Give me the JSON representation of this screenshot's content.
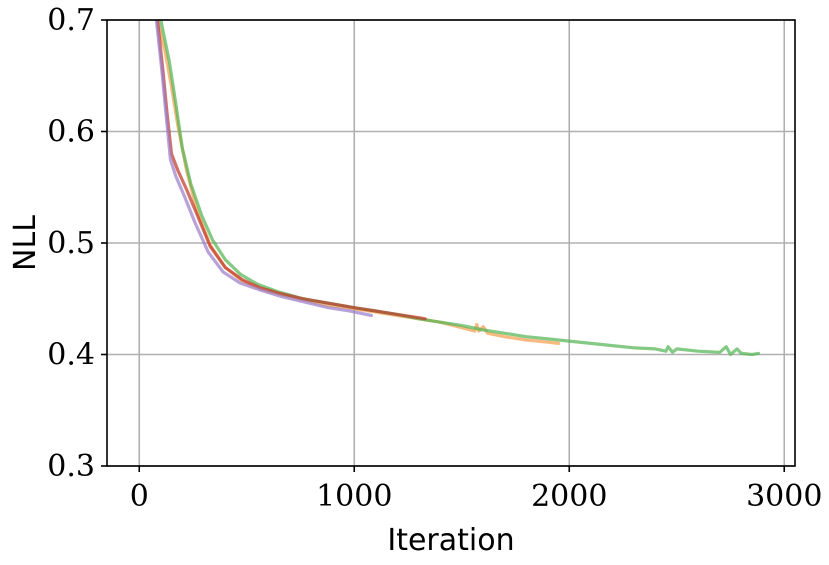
{
  "chart_data": {
    "type": "line",
    "title": "",
    "xlabel": "Iteration",
    "ylabel": "NLL",
    "xlim": [
      -150,
      3050
    ],
    "ylim": [
      0.3,
      0.7
    ],
    "xticks": [
      0,
      1000,
      2000,
      3000
    ],
    "xtick_labels": [
      "0",
      "1000",
      "2000",
      "3000"
    ],
    "yticks": [
      0.3,
      0.4,
      0.5,
      0.6,
      0.7
    ],
    "ytick_labels": [
      "0.3",
      "0.4",
      "0.5",
      "0.6",
      "0.7"
    ],
    "grid": true,
    "series": [
      {
        "color": "#f5a050",
        "x": [
          85,
          120,
          150,
          180,
          220,
          270,
          330,
          400,
          480,
          560,
          650,
          760,
          880,
          1000,
          1100,
          1200,
          1300,
          1400,
          1500,
          1560,
          1570,
          1580,
          1600,
          1620,
          1700,
          1800,
          1900,
          1950
        ],
        "y": [
          0.7,
          0.672,
          0.64,
          0.605,
          0.565,
          0.528,
          0.498,
          0.478,
          0.466,
          0.459,
          0.454,
          0.449,
          0.444,
          0.441,
          0.438,
          0.435,
          0.432,
          0.429,
          0.424,
          0.421,
          0.427,
          0.421,
          0.425,
          0.419,
          0.416,
          0.413,
          0.411,
          0.41
        ]
      },
      {
        "color": "#55b555",
        "x": [
          100,
          140,
          170,
          200,
          240,
          290,
          340,
          400,
          470,
          550,
          650,
          760,
          880,
          1000,
          1100,
          1200,
          1300,
          1400,
          1500,
          1600,
          1700,
          1800,
          1900,
          2000,
          2100,
          2200,
          2300,
          2400,
          2450,
          2460,
          2480,
          2500,
          2600,
          2700,
          2730,
          2750,
          2780,
          2800,
          2850,
          2880
        ],
        "y": [
          0.7,
          0.663,
          0.625,
          0.585,
          0.553,
          0.525,
          0.503,
          0.485,
          0.472,
          0.463,
          0.456,
          0.45,
          0.446,
          0.442,
          0.439,
          0.436,
          0.432,
          0.429,
          0.426,
          0.422,
          0.419,
          0.416,
          0.414,
          0.412,
          0.41,
          0.408,
          0.406,
          0.405,
          0.403,
          0.407,
          0.402,
          0.405,
          0.403,
          0.402,
          0.407,
          0.4,
          0.405,
          0.401,
          0.4,
          0.401
        ]
      },
      {
        "color": "#c0392b",
        "x": [
          85,
          110,
          130,
          150,
          180,
          220,
          270,
          330,
          400,
          480,
          560,
          650,
          760,
          880,
          1000,
          1100,
          1200,
          1300,
          1330
        ],
        "y": [
          0.7,
          0.655,
          0.615,
          0.58,
          0.565,
          0.548,
          0.525,
          0.497,
          0.478,
          0.467,
          0.46,
          0.455,
          0.45,
          0.446,
          0.442,
          0.439,
          0.436,
          0.433,
          0.432
        ]
      },
      {
        "color": "#9b80cc",
        "x": [
          80,
          105,
          125,
          145,
          170,
          210,
          260,
          320,
          390,
          470,
          560,
          660,
          770,
          880,
          980,
          1080
        ],
        "y": [
          0.7,
          0.655,
          0.615,
          0.575,
          0.56,
          0.542,
          0.518,
          0.492,
          0.474,
          0.464,
          0.458,
          0.452,
          0.447,
          0.442,
          0.439,
          0.435
        ]
      }
    ]
  }
}
